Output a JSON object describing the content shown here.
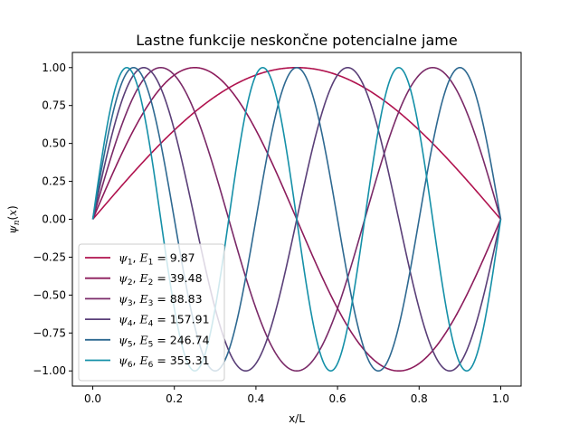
{
  "chart_data": {
    "type": "line",
    "title": "Lastne funkcije neskončne potencialne jame",
    "xlabel": "x/L",
    "ylabel": "ψ_n(x)",
    "xlim": [
      -0.05,
      1.05
    ],
    "ylim": [
      -1.1,
      1.1
    ],
    "xticks": [
      0.0,
      0.2,
      0.4,
      0.6,
      0.8,
      1.0
    ],
    "xtick_labels": [
      "0.0",
      "0.2",
      "0.4",
      "0.6",
      "0.8",
      "1.0"
    ],
    "yticks": [
      -1.0,
      -0.75,
      -0.5,
      -0.25,
      0.0,
      0.25,
      0.5,
      0.75,
      1.0
    ],
    "ytick_labels": [
      "−1.00",
      "−0.75",
      "−0.50",
      "−0.25",
      "0.00",
      "0.25",
      "0.50",
      "0.75",
      "1.00"
    ],
    "grid": false,
    "legend_position": "lower-left",
    "function": "sin(n·π·x)",
    "x_range": [
      0,
      1
    ],
    "series": [
      {
        "n": 1,
        "energy": "9.87",
        "color": "#b0124e",
        "sym": "ψ",
        "sub": "1",
        "Esym": "E",
        "Esub": "1",
        "sep": ", ",
        "eq": " =  ",
        "energy_label": "9.87"
      },
      {
        "n": 2,
        "energy": "39.48",
        "color": "#8c1c5c",
        "sym": "ψ",
        "sub": "2",
        "Esym": "E",
        "Esub": "2",
        "sep": ", ",
        "eq": " =  ",
        "energy_label": "39.48"
      },
      {
        "n": 3,
        "energy": "88.83",
        "color": "#7a2a68",
        "sym": "ψ",
        "sub": "3",
        "Esym": "E",
        "Esub": "3",
        "sep": ", ",
        "eq": " =  ",
        "energy_label": "88.83"
      },
      {
        "n": 4,
        "energy": "157.91",
        "color": "#5a3f78",
        "sym": "ψ",
        "sub": "4",
        "Esym": "E",
        "Esub": "4",
        "sep": ", ",
        "eq": " =  ",
        "energy_label": "157.91"
      },
      {
        "n": 5,
        "energy": "246.74",
        "color": "#2e6991",
        "sym": "ψ",
        "sub": "5",
        "Esym": "E",
        "Esub": "5",
        "sep": ", ",
        "eq": " =  ",
        "energy_label": "246.74"
      },
      {
        "n": 6,
        "energy": "355.31",
        "color": "#1590a8",
        "sym": "ψ",
        "sub": "6",
        "Esym": "E",
        "Esub": "6",
        "sep": ", ",
        "eq": " =  ",
        "energy_label": "355.31"
      }
    ]
  }
}
